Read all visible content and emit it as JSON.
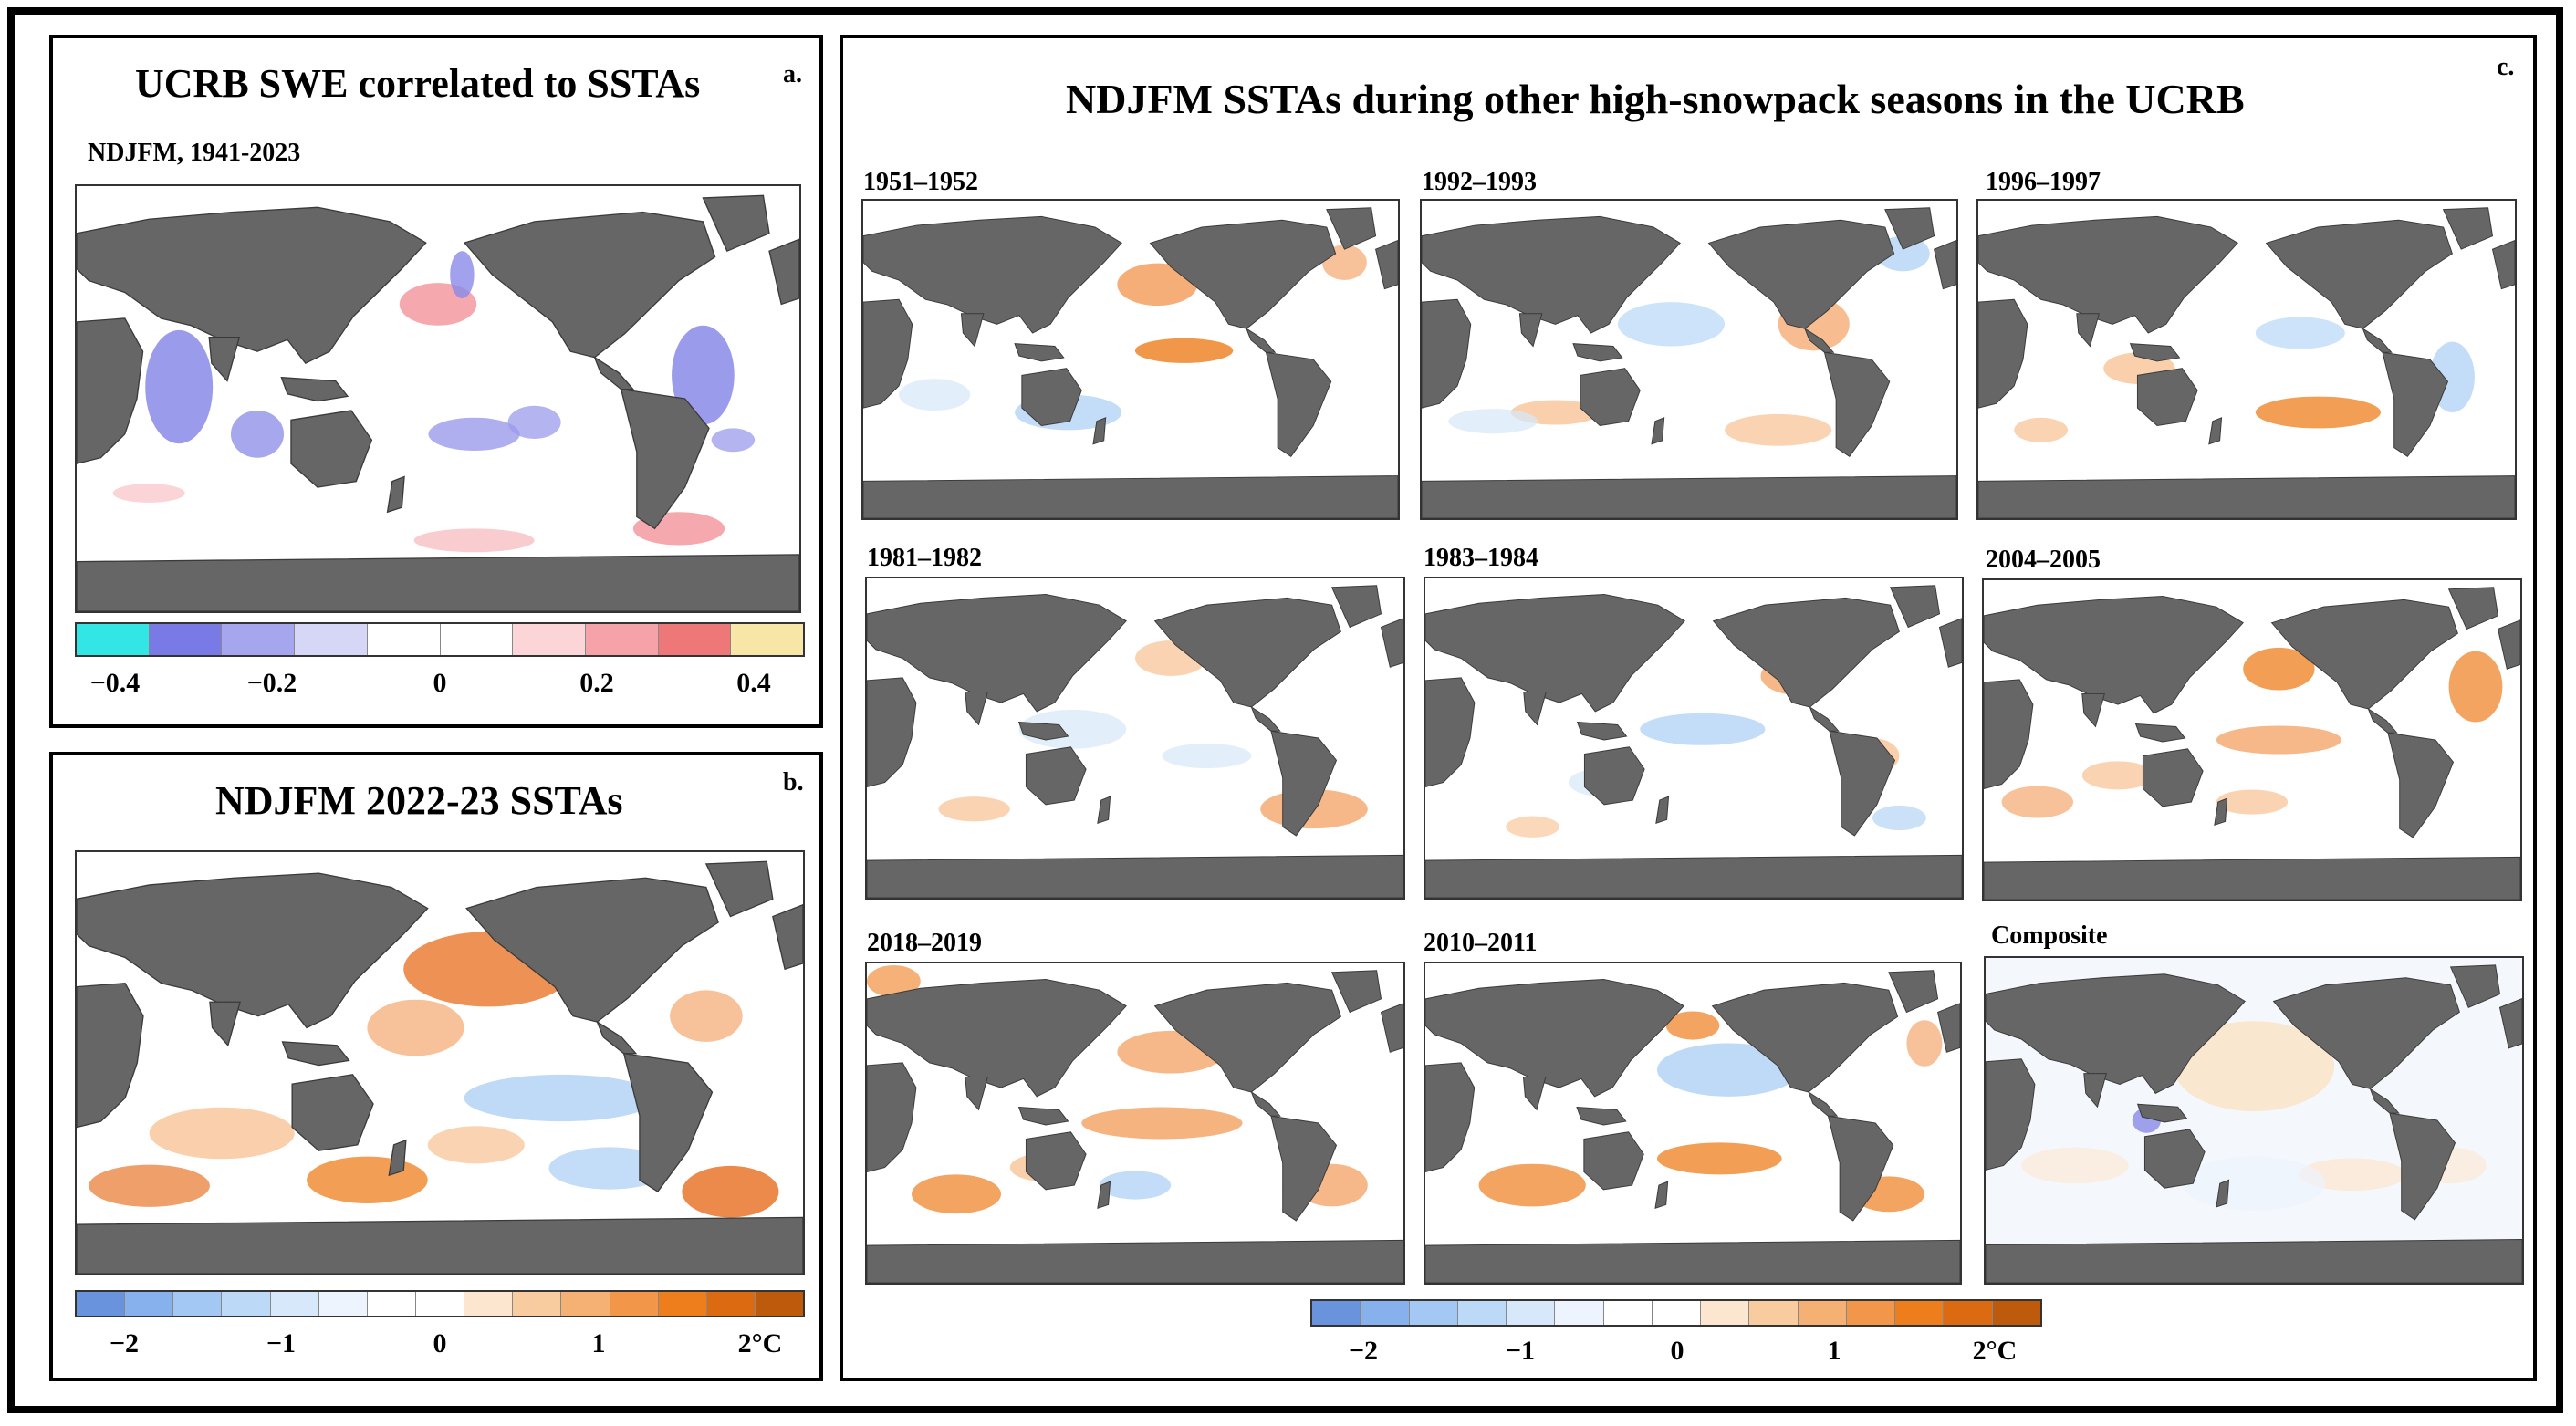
{
  "panel_a": {
    "title": "UCRB SWE correlated to SSTAs",
    "label": "a.",
    "subtitle": "NDJFM, 1941-2023",
    "colorbar": {
      "colors": [
        "#33e6e6",
        "#7a7ae6",
        "#a6a6ef",
        "#d6d6f7",
        "#ffffff",
        "#ffffff",
        "#fbd5d8",
        "#f5a3a8",
        "#ee7878",
        "#f8e6a6"
      ],
      "ticks": [
        "−0.4",
        "−0.2",
        "0",
        "0.2",
        "0.4"
      ]
    }
  },
  "panel_b": {
    "title": "NDJFM 2022-23 SSTAs",
    "label": "b.",
    "colorbar": {
      "colors": [
        "#6a93de",
        "#86b1ec",
        "#a2c8f3",
        "#bcd9f7",
        "#d6e8fa",
        "#edf4fd",
        "#ffffff",
        "#ffffff",
        "#fde6d0",
        "#f9cc9f",
        "#f5b173",
        "#f29649",
        "#ee7d1c",
        "#db6a10",
        "#bd5a0c"
      ],
      "ticks": [
        "−2",
        "−1",
        "0",
        "1",
        "2°C"
      ]
    }
  },
  "panel_c": {
    "title": "NDJFM SSTAs during other high-snowpack seasons in the UCRB",
    "label": "c.",
    "maps": [
      {
        "label": "1951–1952"
      },
      {
        "label": "1992–1993"
      },
      {
        "label": "1996–1997"
      },
      {
        "label": "1981–1982"
      },
      {
        "label": "1983–1984"
      },
      {
        "label": "2004–2005"
      },
      {
        "label": "2018–2019"
      },
      {
        "label": "2010–2011"
      },
      {
        "label": "Composite"
      }
    ],
    "colorbar": {
      "colors": [
        "#6a93de",
        "#86b1ec",
        "#a2c8f3",
        "#bcd9f7",
        "#d6e8fa",
        "#edf4fd",
        "#ffffff",
        "#ffffff",
        "#fde6d0",
        "#f9cc9f",
        "#f5b173",
        "#f29649",
        "#ee7d1c",
        "#db6a10",
        "#bd5a0c"
      ],
      "ticks": [
        "−2",
        "−1",
        "0",
        "1",
        "2°C"
      ]
    }
  }
}
